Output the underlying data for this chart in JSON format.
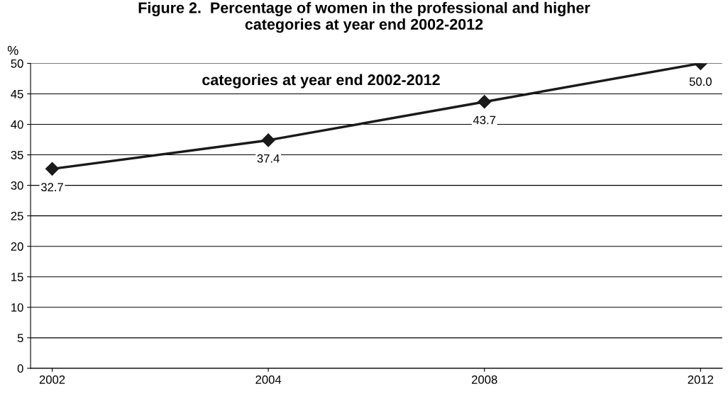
{
  "chart_data": {
    "type": "line",
    "title": "Figure 2.  Percentage of women in the professional and higher\ncategories at year end 2002-2012",
    "ylabel": "%",
    "categories": [
      "2002",
      "2004",
      "2008",
      "2012"
    ],
    "series": [
      {
        "color": "#1a1a1a",
        "values": [
          32.7,
          37.4,
          43.7,
          50.0
        ]
      }
    ],
    "value_labels": [
      "32.7",
      "37.4",
      "43.7",
      "50.0"
    ],
    "annotations": [
      "categories at year end 2002-2012"
    ],
    "ylim": [
      0,
      50
    ],
    "yticks": [
      0,
      5,
      10,
      15,
      20,
      25,
      30,
      35,
      40,
      45,
      50
    ],
    "grid": "y",
    "marker": "diamond",
    "line_style": "solid"
  }
}
